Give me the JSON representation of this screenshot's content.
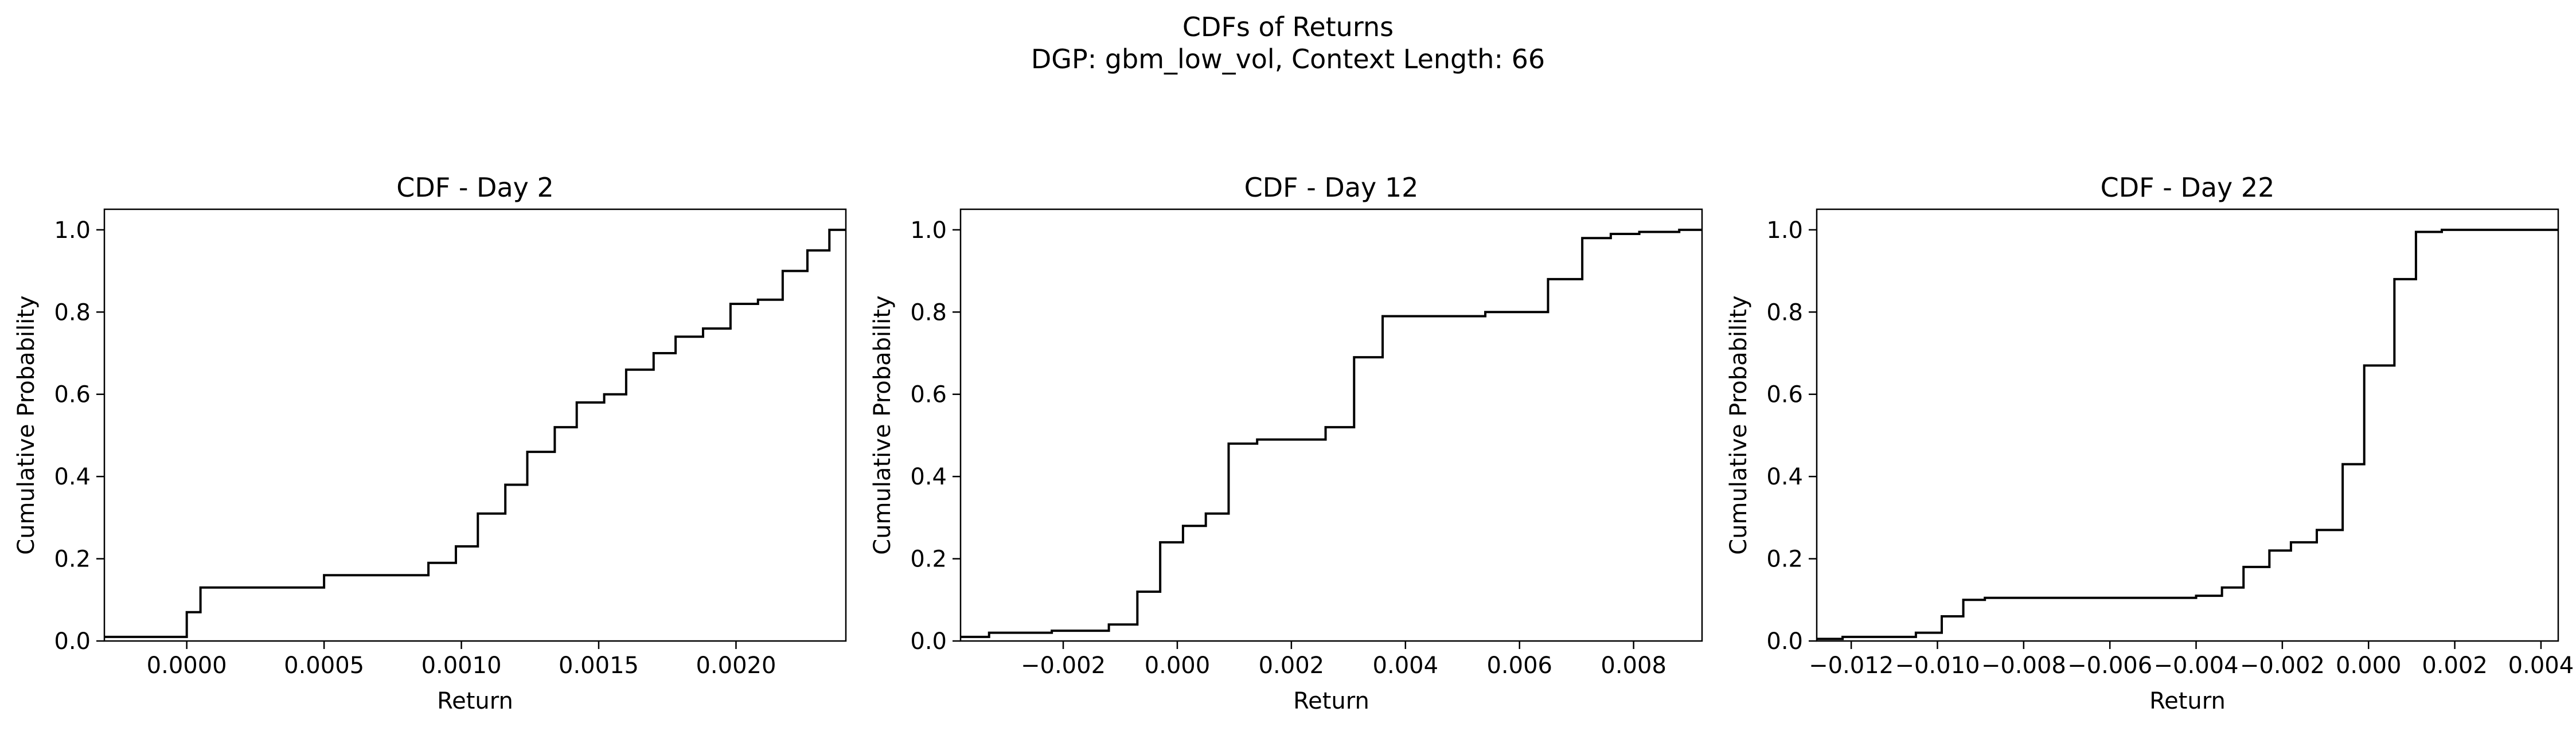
{
  "figure": {
    "title_line1": "CDFs of Returns",
    "title_line2": "DGP: gbm_low_vol, Context Length: 66"
  },
  "chart_data": [
    {
      "type": "line",
      "step": "post",
      "title": "CDF - Day 2",
      "xlabel": "Return",
      "ylabel": "Cumulative Probability",
      "xlim": [
        -0.0003,
        0.0024
      ],
      "ylim": [
        0,
        1.05
      ],
      "xticks": [
        0.0,
        0.0005,
        0.001,
        0.0015,
        0.002
      ],
      "xtick_labels": [
        "0.0000",
        "0.0005",
        "0.0010",
        "0.0015",
        "0.0020"
      ],
      "yticks": [
        0.0,
        0.2,
        0.4,
        0.6,
        0.8,
        1.0
      ],
      "ytick_labels": [
        "0.0",
        "0.2",
        "0.4",
        "0.6",
        "0.8",
        "1.0"
      ],
      "line_color": "#000000",
      "grid": false,
      "series": [
        {
          "x": [
            -0.0003,
            0.0,
            5e-05,
            0.0005,
            0.00088,
            0.00098,
            0.00106,
            0.00116,
            0.00124,
            0.00134,
            0.00142,
            0.00152,
            0.0016,
            0.0017,
            0.00178,
            0.00188,
            0.00198,
            0.00208,
            0.00217,
            0.00226,
            0.00234,
            0.0024
          ],
          "y": [
            0.01,
            0.07,
            0.13,
            0.16,
            0.19,
            0.23,
            0.31,
            0.38,
            0.46,
            0.52,
            0.58,
            0.6,
            0.66,
            0.7,
            0.74,
            0.76,
            0.82,
            0.83,
            0.9,
            0.95,
            1.0,
            1.0
          ]
        }
      ]
    },
    {
      "type": "line",
      "step": "post",
      "title": "CDF - Day 12",
      "xlabel": "Return",
      "ylabel": "Cumulative Probability",
      "xlim": [
        -0.0038,
        0.0092
      ],
      "ylim": [
        0,
        1.05
      ],
      "xticks": [
        -0.002,
        0.0,
        0.002,
        0.004,
        0.006,
        0.008
      ],
      "xtick_labels": [
        "−0.002",
        "0.000",
        "0.002",
        "0.004",
        "0.006",
        "0.008"
      ],
      "yticks": [
        0.0,
        0.2,
        0.4,
        0.6,
        0.8,
        1.0
      ],
      "ytick_labels": [
        "0.0",
        "0.2",
        "0.4",
        "0.6",
        "0.8",
        "1.0"
      ],
      "line_color": "#000000",
      "grid": false,
      "series": [
        {
          "x": [
            -0.0038,
            -0.0033,
            -0.0022,
            -0.0012,
            -0.0007,
            -0.0003,
            0.0001,
            0.0005,
            0.0009,
            0.0014,
            0.0026,
            0.0031,
            0.0036,
            0.0048,
            0.0054,
            0.0059,
            0.0065,
            0.0071,
            0.0076,
            0.0081,
            0.0088,
            0.0092
          ],
          "y": [
            0.01,
            0.02,
            0.025,
            0.04,
            0.12,
            0.24,
            0.28,
            0.31,
            0.48,
            0.49,
            0.52,
            0.69,
            0.79,
            0.79,
            0.8,
            0.8,
            0.88,
            0.98,
            0.99,
            0.995,
            1.0,
            1.0
          ]
        }
      ]
    },
    {
      "type": "line",
      "step": "post",
      "title": "CDF - Day 22",
      "xlabel": "Return",
      "ylabel": "Cumulative Probability",
      "xlim": [
        -0.0128,
        0.0044
      ],
      "ylim": [
        0,
        1.05
      ],
      "xticks": [
        -0.012,
        -0.01,
        -0.008,
        -0.006,
        -0.004,
        -0.002,
        0.0,
        0.002,
        0.004
      ],
      "xtick_labels": [
        "−0.012",
        "−0.010",
        "−0.008",
        "−0.006",
        "−0.004",
        "−0.002",
        "0.000",
        "0.002",
        "0.004"
      ],
      "yticks": [
        0.0,
        0.2,
        0.4,
        0.6,
        0.8,
        1.0
      ],
      "ytick_labels": [
        "0.0",
        "0.2",
        "0.4",
        "0.6",
        "0.8",
        "1.0"
      ],
      "line_color": "#000000",
      "grid": false,
      "series": [
        {
          "x": [
            -0.0128,
            -0.0122,
            -0.0105,
            -0.0099,
            -0.0094,
            -0.0089,
            -0.004,
            -0.0034,
            -0.0029,
            -0.0023,
            -0.0018,
            -0.0012,
            -0.0006,
            -0.0001,
            0.0006,
            0.0011,
            0.0017,
            0.0044
          ],
          "y": [
            0.005,
            0.01,
            0.02,
            0.06,
            0.1,
            0.105,
            0.11,
            0.13,
            0.18,
            0.22,
            0.24,
            0.27,
            0.43,
            0.67,
            0.88,
            0.995,
            1.0,
            1.0
          ]
        }
      ]
    }
  ]
}
